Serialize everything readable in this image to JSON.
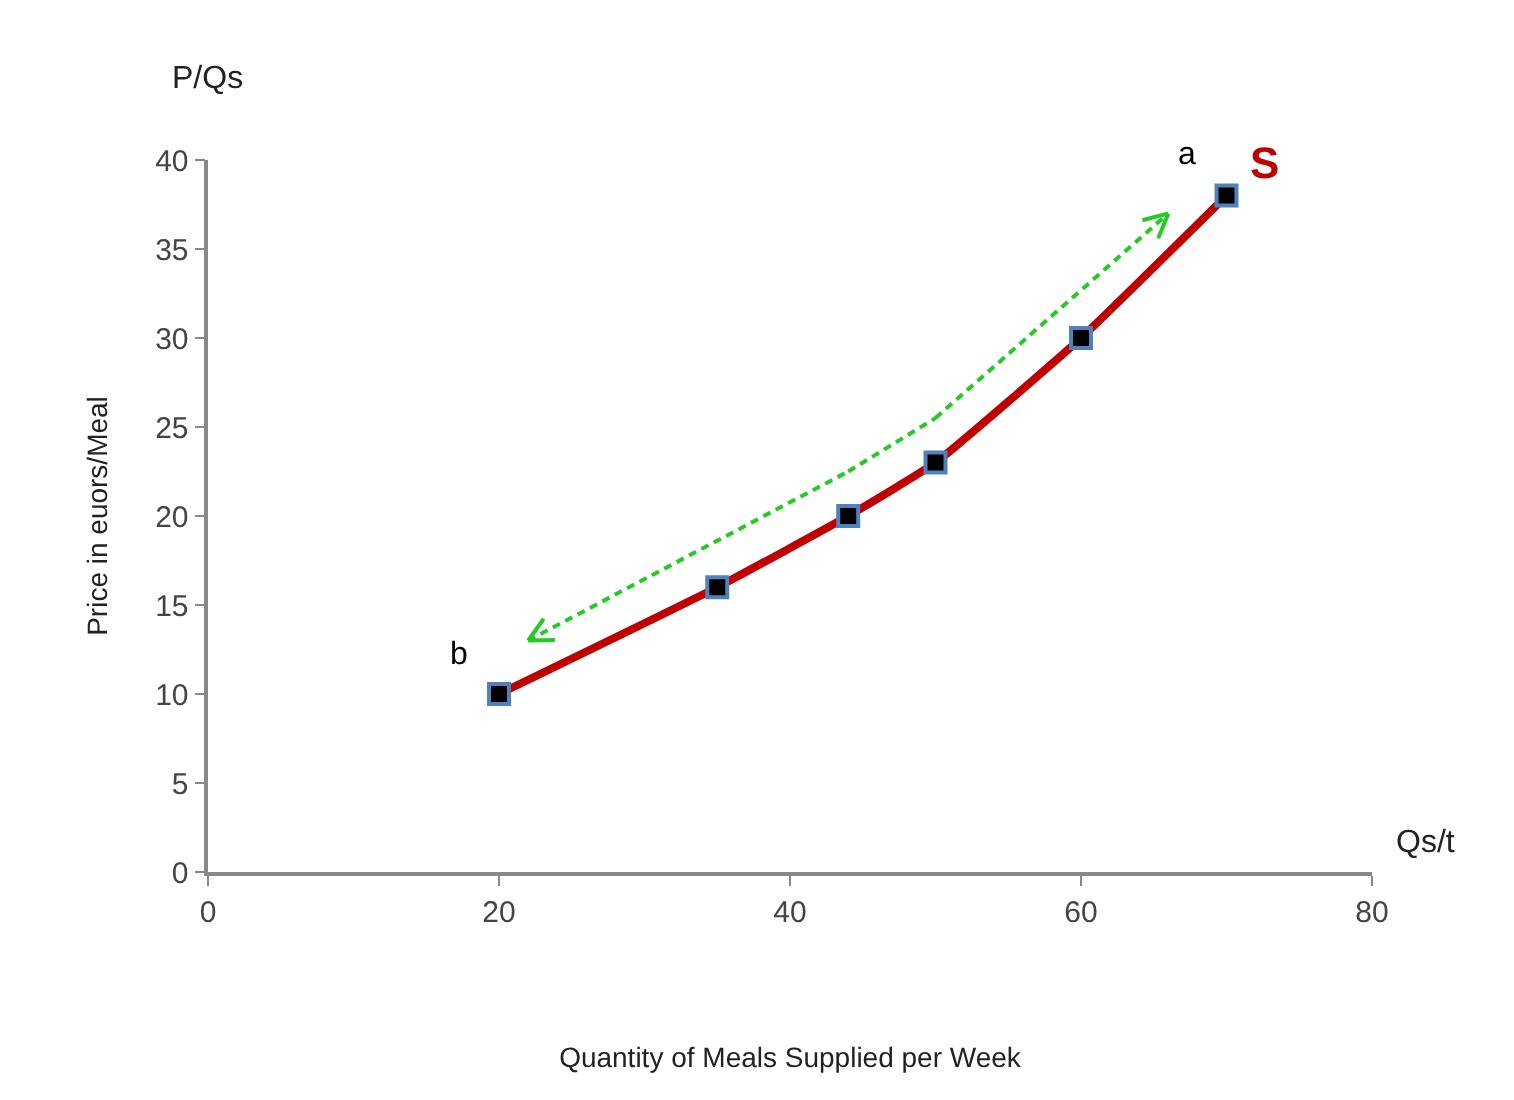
{
  "chart_data": {
    "type": "line",
    "xlabel": "Quantity of Meals Supplied per Week",
    "ylabel": "Price in euors/Meal",
    "x": [
      20,
      35,
      44,
      50,
      60,
      70
    ],
    "series": [
      {
        "name": "S",
        "color": "#c00000",
        "values": [
          10,
          16,
          20,
          23,
          30,
          38
        ]
      }
    ],
    "xlim": [
      0,
      80
    ],
    "xticks": [
      0,
      20,
      40,
      60,
      80
    ],
    "ylim": [
      0,
      40
    ],
    "yticks": [
      0,
      5,
      10,
      15,
      20,
      25,
      30,
      35,
      40
    ],
    "grid": false,
    "legend": false,
    "marker": "square",
    "line_style": "solid",
    "annotations": [
      "P/Qs",
      "Qs/t",
      {
        "text": "a",
        "x": 70,
        "y": 38
      },
      {
        "text": "b",
        "x": 20,
        "y": 10
      }
    ]
  }
}
